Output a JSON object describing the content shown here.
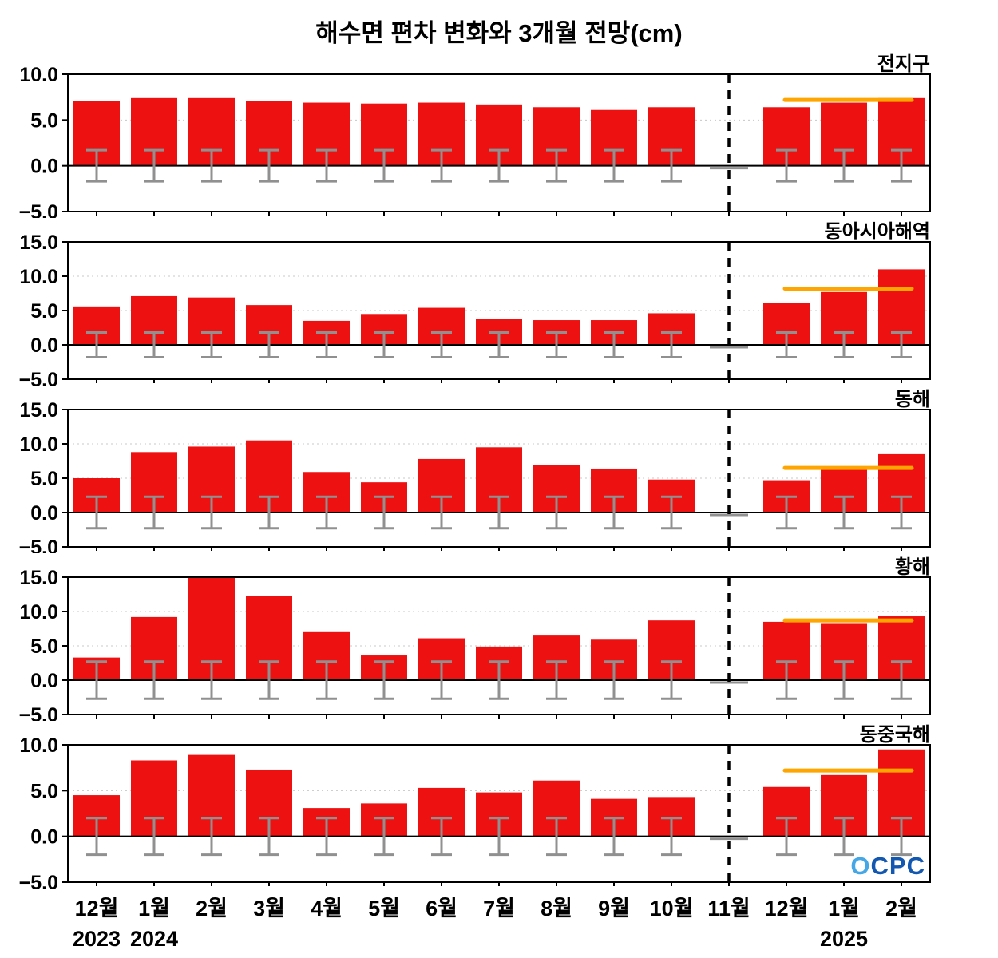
{
  "title": "해수면 편차 변화와 3개월 전망(cm)",
  "watermark": {
    "part1": "O",
    "part2": "CPC"
  },
  "colors": {
    "bar": "#ee1111",
    "error": "#909090",
    "forecast": "#ffa500",
    "dashed": "#000000",
    "grid": "#c8c8c8",
    "axis": "#000000",
    "watermark_light": "#45a7e6",
    "watermark_dark": "#1358b0"
  },
  "chart_data": {
    "type": "bar",
    "title": "해수면 편차 변화와 3개월 전망(cm)",
    "categories": [
      "12월",
      "1월",
      "2월",
      "3월",
      "4월",
      "5월",
      "6월",
      "7월",
      "8월",
      "9월",
      "10월",
      "11월",
      "12월",
      "1월",
      "2월"
    ],
    "year_labels": [
      {
        "index": 0,
        "text": "2023"
      },
      {
        "index": 1,
        "text": "2024"
      },
      {
        "index": 13,
        "text": "2025"
      }
    ],
    "forecast_start_index": 12,
    "dashed_line_index": 11,
    "legend_position": "none",
    "grid": true,
    "panels": [
      {
        "label": "전지구",
        "ylim": [
          -5,
          10
        ],
        "yticks": [
          10,
          5,
          0,
          -5
        ],
        "values": [
          7.1,
          7.4,
          7.4,
          7.1,
          6.9,
          6.8,
          6.9,
          6.7,
          6.4,
          6.1,
          6.4,
          null,
          6.4,
          6.9,
          7.4
        ],
        "error": 1.7,
        "forecast_line": 7.2
      },
      {
        "label": "동아시아해역",
        "ylim": [
          -5,
          15
        ],
        "yticks": [
          15,
          10,
          5,
          0,
          -5
        ],
        "values": [
          5.6,
          7.1,
          6.9,
          5.8,
          3.5,
          4.5,
          5.4,
          3.8,
          3.6,
          3.6,
          4.6,
          null,
          6.1,
          7.7,
          11.0
        ],
        "error": 1.8,
        "forecast_line": 8.2
      },
      {
        "label": "동해",
        "ylim": [
          -5,
          15
        ],
        "yticks": [
          15,
          10,
          5,
          0,
          -5
        ],
        "values": [
          5.0,
          8.8,
          9.6,
          10.5,
          5.9,
          4.4,
          7.8,
          9.5,
          6.9,
          6.4,
          4.8,
          null,
          4.7,
          6.6,
          8.5
        ],
        "error": 2.3,
        "forecast_line": 6.5
      },
      {
        "label": "황해",
        "ylim": [
          -5,
          15
        ],
        "yticks": [
          15,
          10,
          5,
          0,
          -5
        ],
        "values": [
          3.3,
          9.2,
          14.9,
          12.3,
          7.0,
          3.6,
          6.1,
          4.9,
          6.5,
          5.9,
          8.7,
          null,
          8.5,
          8.2,
          9.3
        ],
        "error": 2.7,
        "forecast_line": 8.7
      },
      {
        "label": "동중국해",
        "ylim": [
          -5,
          10
        ],
        "yticks": [
          10,
          5,
          0,
          -5
        ],
        "values": [
          4.5,
          8.3,
          8.9,
          7.3,
          3.1,
          3.6,
          5.3,
          4.8,
          6.1,
          4.1,
          4.3,
          null,
          5.4,
          6.7,
          9.5
        ],
        "error": 2.0,
        "forecast_line": 7.2
      }
    ]
  }
}
